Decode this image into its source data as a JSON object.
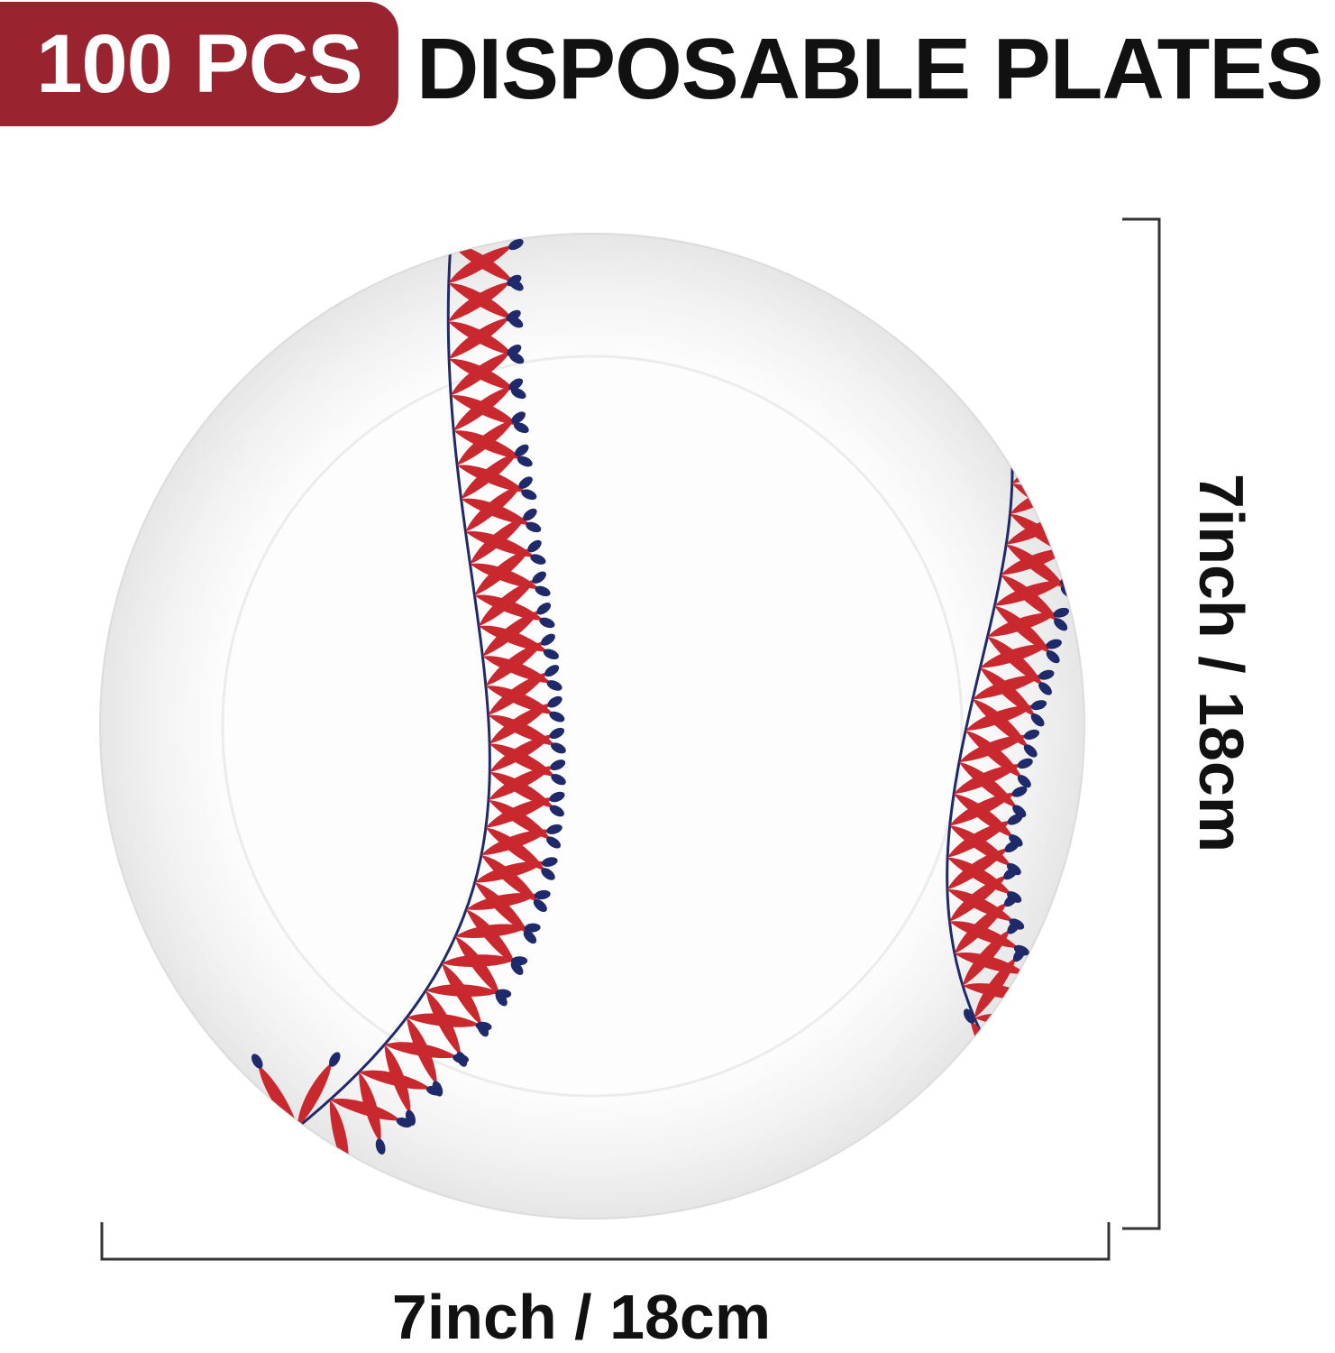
{
  "header": {
    "badge": "100 PCS",
    "title": "DISPOSABLE PLATES",
    "badge_color": "#9a2330"
  },
  "product": {
    "design": "baseball-stitch paper plate",
    "stitch_color": "#c8282e",
    "thread_color": "#1f2a6b"
  },
  "dimensions": {
    "width_label": "7inch / 18cm",
    "height_label": "7inch / 18cm"
  }
}
